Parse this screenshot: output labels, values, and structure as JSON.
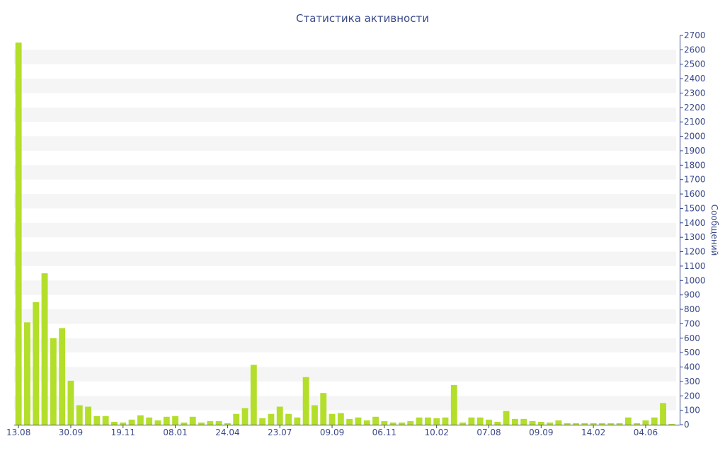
{
  "chart_data": {
    "type": "bar",
    "title": "Статистика активности",
    "ylabel": "Сообщений",
    "xlabel": "",
    "ylim": [
      0,
      2700
    ],
    "ytick_step": 100,
    "y_axis_position": "right",
    "grid": "horizontal banded",
    "legend": "none",
    "x_tick_labels": [
      "13.08",
      "30.09",
      "19.11",
      "08.01",
      "24.04",
      "23.07",
      "09.09",
      "06.11",
      "10.02",
      "07.08",
      "09.09",
      "14.02",
      "04.06"
    ],
    "x_tick_indices": [
      0,
      6,
      12,
      18,
      24,
      30,
      36,
      42,
      48,
      54,
      60,
      66,
      72
    ],
    "values": [
      2650,
      710,
      850,
      1050,
      600,
      670,
      305,
      135,
      125,
      60,
      60,
      20,
      15,
      35,
      65,
      50,
      30,
      55,
      60,
      15,
      55,
      15,
      25,
      25,
      10,
      75,
      115,
      415,
      45,
      75,
      125,
      75,
      50,
      330,
      135,
      220,
      75,
      80,
      40,
      50,
      30,
      55,
      25,
      15,
      15,
      25,
      50,
      50,
      45,
      50,
      275,
      15,
      50,
      50,
      35,
      20,
      95,
      40,
      40,
      25,
      20,
      15,
      30,
      10,
      10,
      10,
      10,
      10,
      10,
      10,
      50,
      10,
      30,
      50,
      150,
      5
    ],
    "colors": {
      "bar": "#b3de2a",
      "band": "#f5f5f5",
      "text": "#3a4a8a",
      "axis": "#3a4a8a"
    }
  }
}
